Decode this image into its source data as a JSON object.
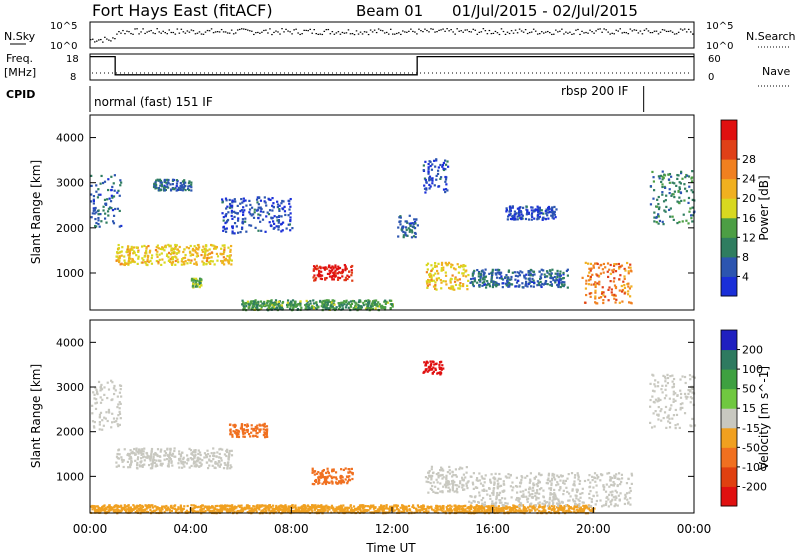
{
  "header": {
    "station": "Fort Hays East (fitACF)",
    "beam": "Beam 01",
    "dates": "01/Jul/2015 - 02/Jul/2015"
  },
  "left_labels": {
    "nsky": "N.Sky",
    "freq": "Freq.",
    "freq_unit": "[MHz]",
    "cpid": "CPID"
  },
  "right_labels": {
    "nsearch": "N.Search",
    "nave": "Nave"
  },
  "nsky_ticks": [
    "10^5",
    "10^0"
  ],
  "nsearch_ticks": [
    "10^5",
    "10^0"
  ],
  "freq_ticks": [
    "18",
    "8"
  ],
  "nave_ticks": [
    "60",
    "0"
  ],
  "cpid_modes": [
    {
      "label": "normal (fast) 151 IF",
      "start_hour": 0,
      "end_hour": 22
    },
    {
      "label": "rbsp 200 IF",
      "start_hour": 22,
      "end_hour": 24
    }
  ],
  "panels": {
    "power": {
      "ylabel": "Slant Range [km]",
      "yticks": [
        1000,
        2000,
        3000,
        4000
      ],
      "colorbar_label": "Power [dB]",
      "colorbar_ticks": [
        "4",
        "8",
        "12",
        "16",
        "20",
        "24",
        "28"
      ],
      "colors": [
        "#1a2fd8",
        "#2c55b0",
        "#2f7d60",
        "#4c9e44",
        "#d8d820",
        "#f0b020",
        "#f08020",
        "#e04018",
        "#e01010"
      ]
    },
    "velocity": {
      "ylabel": "Slant Range [km]",
      "yticks": [
        1000,
        2000,
        3000,
        4000
      ],
      "colorbar_label": "Velocity [m s^-1]",
      "colorbar_ticks": [
        "200",
        "100",
        "50",
        "15",
        "-15",
        "-50",
        "-100",
        "-200"
      ],
      "colors": [
        "#2020c0",
        "#2e7a60",
        "#3ea040",
        "#70c840",
        "#c8c8c0",
        "#f0a020",
        "#f07020",
        "#e04010",
        "#e01010"
      ]
    }
  },
  "xaxis": {
    "label": "Time UT",
    "ticks": [
      "00:00",
      "04:00",
      "08:00",
      "12:00",
      "16:00",
      "20:00",
      "00:00"
    ]
  },
  "chart_data": {
    "type": "heatmap",
    "x_range_hours": [
      0,
      24
    ],
    "y_range_km": [
      180,
      4500
    ],
    "freq_series": [
      {
        "start_hour": 0,
        "end_hour": 1,
        "freq_mhz": 17
      },
      {
        "start_hour": 1,
        "end_hour": 13,
        "freq_mhz": 10
      },
      {
        "start_hour": 13,
        "end_hour": 24,
        "freq_mhz": 17
      }
    ],
    "power_regions": [
      {
        "t0": 0,
        "t1": 1.2,
        "r0": 2050,
        "r1": 3200,
        "db": 8
      },
      {
        "t0": 1,
        "t1": 5.6,
        "r0": 1200,
        "r1": 1650,
        "db": 18
      },
      {
        "t0": 2.5,
        "t1": 4,
        "r0": 2850,
        "r1": 3100,
        "db": 8
      },
      {
        "t0": 4,
        "t1": 4.4,
        "r0": 700,
        "r1": 900,
        "db": 14
      },
      {
        "t0": 5.2,
        "t1": 8,
        "r0": 1900,
        "r1": 2700,
        "db": 6
      },
      {
        "t0": 8.8,
        "t1": 10.4,
        "r0": 850,
        "r1": 1200,
        "db": 28
      },
      {
        "t0": 6,
        "t1": 12,
        "r0": 200,
        "r1": 420,
        "db": 12
      },
      {
        "t0": 12.2,
        "t1": 13,
        "r0": 1800,
        "r1": 2300,
        "db": 8
      },
      {
        "t0": 13.2,
        "t1": 14.2,
        "r0": 2800,
        "r1": 3550,
        "db": 6
      },
      {
        "t0": 13.3,
        "t1": 15,
        "r0": 650,
        "r1": 1250,
        "db": 18
      },
      {
        "t0": 15,
        "t1": 19,
        "r0": 700,
        "r1": 1100,
        "db": 8
      },
      {
        "t0": 16.5,
        "t1": 18.5,
        "r0": 2200,
        "r1": 2500,
        "db": 6
      },
      {
        "t0": 19.5,
        "t1": 21.5,
        "r0": 350,
        "r1": 1250,
        "db": 22
      },
      {
        "t0": 22.2,
        "t1": 24,
        "r0": 2100,
        "r1": 3300,
        "db": 10
      }
    ],
    "velocity_regions": [
      {
        "t0": 0,
        "t1": 1.2,
        "r0": 2050,
        "r1": 3200,
        "vel": 0
      },
      {
        "t0": 1,
        "t1": 5.6,
        "r0": 1200,
        "r1": 1650,
        "vel": 0
      },
      {
        "t0": 5.5,
        "t1": 7,
        "r0": 1900,
        "r1": 2200,
        "vel": -60
      },
      {
        "t0": 8.8,
        "t1": 10.4,
        "r0": 850,
        "r1": 1200,
        "vel": -80
      },
      {
        "t0": 0,
        "t1": 20,
        "r0": 200,
        "r1": 380,
        "vel": -30
      },
      {
        "t0": 13.2,
        "t1": 14,
        "r0": 3300,
        "r1": 3600,
        "vel": -200
      },
      {
        "t0": 13.3,
        "t1": 15,
        "r0": 650,
        "r1": 1250,
        "vel": 0
      },
      {
        "t0": 15,
        "t1": 21.5,
        "r0": 350,
        "r1": 1100,
        "vel": 0
      },
      {
        "t0": 22.2,
        "t1": 24,
        "r0": 2100,
        "r1": 3300,
        "vel": 0
      }
    ]
  }
}
